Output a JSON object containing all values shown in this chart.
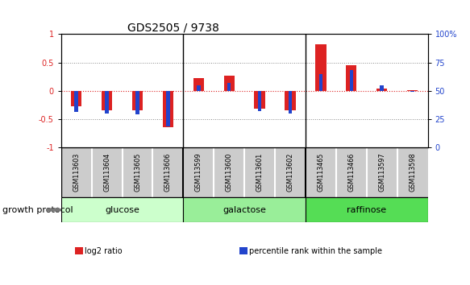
{
  "title": "GDS2505 / 9738",
  "samples": [
    "GSM113603",
    "GSM113604",
    "GSM113605",
    "GSM113606",
    "GSM113599",
    "GSM113600",
    "GSM113601",
    "GSM113602",
    "GSM113465",
    "GSM113466",
    "GSM113597",
    "GSM113598"
  ],
  "log2_ratio": [
    -0.28,
    -0.35,
    -0.35,
    -0.65,
    0.22,
    0.27,
    -0.32,
    -0.35,
    0.82,
    0.45,
    0.03,
    0.01
  ],
  "percentile_rank": [
    31,
    30,
    29,
    18,
    55,
    57,
    32,
    30,
    65,
    68,
    55,
    49
  ],
  "groups": [
    {
      "label": "glucose",
      "start": 0,
      "end": 4,
      "color": "#ccffcc"
    },
    {
      "label": "galactose",
      "start": 4,
      "end": 8,
      "color": "#99ee99"
    },
    {
      "label": "raffinose",
      "start": 8,
      "end": 12,
      "color": "#55dd55"
    }
  ],
  "red_color": "#dd2222",
  "blue_color": "#2244cc",
  "ylim_left": [
    -1,
    1
  ],
  "ylim_right": [
    0,
    100
  ],
  "yticks_left": [
    -1,
    -0.5,
    0,
    0.5,
    1
  ],
  "yticks_right": [
    0,
    25,
    50,
    75,
    100
  ],
  "hline_dotted_gray": [
    0.5,
    -0.5
  ],
  "group_label": "growth protocol",
  "legend_items": [
    {
      "color": "#dd2222",
      "label": "log2 ratio"
    },
    {
      "color": "#2244cc",
      "label": "percentile rank within the sample"
    }
  ],
  "bg_color": "#ffffff",
  "tick_label_fontsize": 7,
  "title_fontsize": 10,
  "sample_label_fontsize": 5.8,
  "group_label_fontsize": 8,
  "legend_fontsize": 7
}
